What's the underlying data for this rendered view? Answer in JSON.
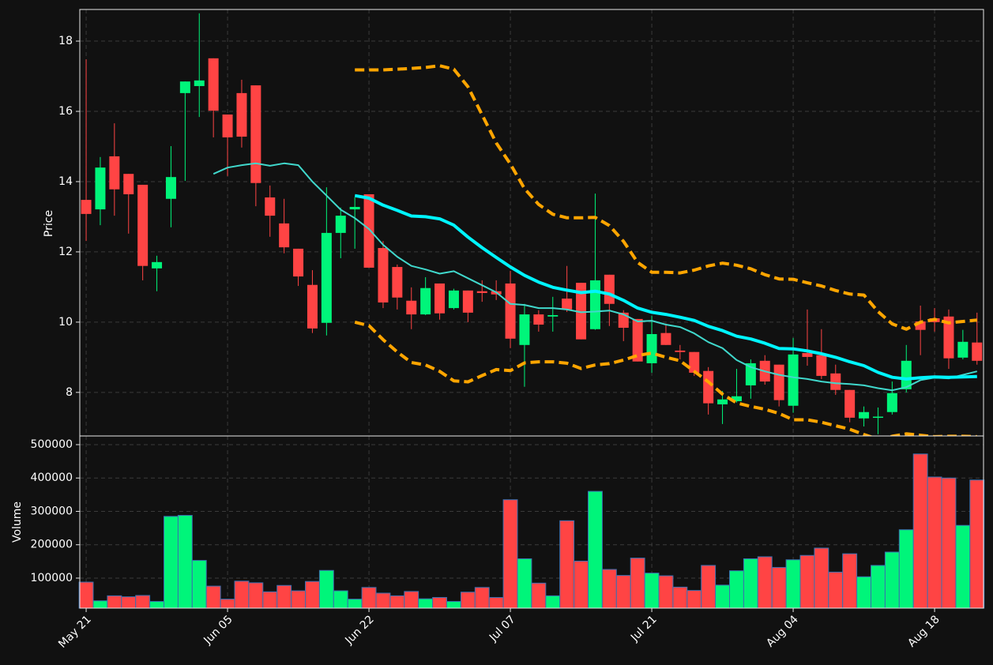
{
  "chart_data": [
    {
      "type": "candlestick",
      "ylabel": "Price",
      "categories": [
        "May 21",
        null,
        null,
        null,
        null,
        null,
        null,
        null,
        null,
        null,
        "Jun 05",
        null,
        null,
        null,
        null,
        null,
        null,
        null,
        null,
        null,
        "Jun 22",
        null,
        null,
        null,
        null,
        null,
        null,
        null,
        null,
        null,
        "Jul 07",
        null,
        null,
        null,
        null,
        null,
        null,
        null,
        null,
        null,
        "Jul 21",
        null,
        null,
        null,
        null,
        null,
        null,
        null,
        null,
        null,
        "Aug 04",
        null,
        null,
        null,
        null,
        null,
        null,
        null,
        null,
        null,
        "Aug 18",
        null,
        null,
        null
      ],
      "open": [
        13.48,
        13.21,
        14.72,
        14.22,
        13.91,
        11.53,
        13.51,
        16.52,
        16.72,
        17.51,
        15.91,
        16.52,
        16.74,
        13.55,
        12.81,
        12.09,
        11.06,
        9.98,
        12.54,
        13.21,
        13.64,
        12.11,
        11.57,
        10.61,
        10.22,
        11.1,
        10.4,
        10.9,
        10.88,
        10.88,
        11.1,
        9.35,
        10.22,
        10.16,
        10.67,
        11.12,
        9.8,
        11.35,
        10.27,
        10.09,
        8.83,
        9.69,
        9.19,
        9.15,
        8.61,
        7.66,
        7.75,
        8.2,
        8.9,
        8.79,
        7.62,
        9.12,
        9.06,
        8.54,
        8.07,
        7.26,
        7.29,
        7.44,
        8.09,
        10.02,
        10.11,
        10.16,
        8.99,
        9.42
      ],
      "high": [
        17.48,
        14.7,
        15.66,
        14.22,
        13.91,
        11.89,
        15.01,
        16.85,
        18.79,
        17.51,
        15.91,
        16.9,
        16.74,
        13.89,
        13.51,
        12.09,
        11.48,
        13.84,
        13.26,
        13.55,
        13.64,
        12.31,
        11.64,
        10.99,
        11.28,
        11.1,
        10.95,
        10.9,
        11.19,
        11.19,
        11.46,
        10.52,
        10.34,
        10.72,
        11.6,
        11.12,
        13.66,
        11.35,
        10.34,
        10.09,
        10.18,
        9.96,
        9.35,
        9.15,
        8.72,
        8.04,
        8.67,
        8.94,
        9.06,
        8.79,
        9.55,
        10.36,
        9.8,
        8.79,
        8.07,
        7.6,
        7.57,
        8.31,
        9.35,
        10.47,
        10.4,
        10.36,
        9.78,
        10.27
      ],
      "low": [
        12.31,
        12.76,
        13.03,
        12.52,
        11.19,
        10.88,
        12.7,
        14.02,
        15.84,
        15.26,
        14.16,
        14.97,
        13.3,
        12.43,
        11.96,
        11.03,
        9.69,
        9.62,
        11.82,
        12.09,
        11.55,
        10.4,
        10.36,
        9.8,
        10.2,
        10.07,
        10.36,
        10.0,
        10.58,
        10.63,
        9.26,
        8.16,
        9.73,
        9.73,
        10.29,
        9.51,
        9.78,
        9.89,
        9.46,
        8.88,
        8.56,
        9.35,
        8.94,
        8.47,
        7.37,
        7.1,
        7.71,
        7.82,
        8.22,
        7.6,
        7.42,
        8.76,
        8.38,
        7.93,
        7.15,
        7.03,
        6.81,
        7.37,
        8.0,
        9.06,
        9.73,
        8.67,
        8.94,
        8.79
      ],
      "close": [
        13.08,
        14.4,
        13.78,
        13.64,
        11.6,
        11.71,
        14.13,
        16.85,
        16.88,
        16.02,
        15.26,
        15.28,
        13.96,
        13.03,
        12.13,
        11.3,
        9.82,
        12.54,
        13.03,
        13.28,
        11.55,
        10.56,
        10.7,
        10.22,
        10.97,
        10.25,
        10.9,
        10.27,
        10.83,
        10.79,
        9.53,
        10.22,
        9.93,
        10.2,
        10.36,
        9.51,
        11.19,
        10.52,
        9.84,
        8.88,
        9.66,
        9.35,
        9.15,
        8.56,
        7.69,
        7.8,
        7.89,
        8.83,
        8.31,
        7.78,
        9.08,
        9.01,
        8.47,
        8.07,
        7.28,
        7.44,
        7.31,
        7.98,
        8.9,
        9.78,
        10.0,
        8.97,
        9.44,
        8.9
      ],
      "up_color": "#00f57a",
      "down_color": "#ff4444",
      "series": [
        {
          "color": "#40d8cc",
          "linewidth": 2,
          "linestyle": "solid",
          "values": [
            null,
            null,
            null,
            null,
            null,
            null,
            null,
            null,
            null,
            14.22,
            14.4,
            14.47,
            14.52,
            14.45,
            14.52,
            14.47,
            14.0,
            13.6,
            13.2,
            12.96,
            12.65,
            12.2,
            11.86,
            11.6,
            11.5,
            11.38,
            11.45,
            11.25,
            11.05,
            10.85,
            10.52,
            10.49,
            10.4,
            10.4,
            10.36,
            10.28,
            10.3,
            10.33,
            10.22,
            10.02,
            10.04,
            9.93,
            9.86,
            9.68,
            9.43,
            9.26,
            8.92,
            8.72,
            8.6,
            8.5,
            8.43,
            8.38,
            8.31,
            8.26,
            8.24,
            8.2,
            8.12,
            8.06,
            8.15,
            8.35,
            8.42,
            8.4,
            8.5,
            8.6
          ]
        },
        {
          "color": "#00f5ff",
          "linewidth": 4,
          "linestyle": "solid",
          "values": [
            null,
            null,
            null,
            null,
            null,
            null,
            null,
            null,
            null,
            null,
            null,
            null,
            null,
            null,
            null,
            null,
            null,
            null,
            null,
            13.6,
            13.53,
            13.33,
            13.18,
            13.02,
            13.0,
            12.94,
            12.76,
            12.42,
            12.12,
            11.84,
            11.57,
            11.33,
            11.14,
            10.99,
            10.91,
            10.84,
            10.88,
            10.8,
            10.62,
            10.4,
            10.28,
            10.22,
            10.14,
            10.05,
            9.88,
            9.76,
            9.6,
            9.52,
            9.4,
            9.25,
            9.24,
            9.18,
            9.1,
            9.0,
            8.87,
            8.76,
            8.57,
            8.43,
            8.38,
            8.42,
            8.44,
            8.43,
            8.44,
            8.45
          ]
        },
        {
          "color": "#ffa500",
          "linewidth": 4,
          "linestyle": "dashed",
          "values": [
            null,
            null,
            null,
            null,
            null,
            null,
            null,
            null,
            null,
            null,
            null,
            null,
            null,
            null,
            null,
            null,
            null,
            null,
            null,
            17.18,
            17.18,
            17.18,
            17.2,
            17.22,
            17.25,
            17.3,
            17.2,
            16.7,
            15.9,
            15.1,
            14.5,
            13.8,
            13.35,
            13.07,
            12.97,
            12.97,
            12.98,
            12.75,
            12.3,
            11.7,
            11.42,
            11.42,
            11.4,
            11.48,
            11.6,
            11.68,
            11.62,
            11.52,
            11.35,
            11.23,
            11.22,
            11.12,
            11.03,
            10.9,
            10.8,
            10.77,
            10.3,
            9.95,
            9.8,
            10.0,
            10.08,
            9.98,
            10.02,
            10.06
          ]
        },
        {
          "color": "#ffa500",
          "linewidth": 4,
          "linestyle": "dashed",
          "values": [
            null,
            null,
            null,
            null,
            null,
            null,
            null,
            null,
            null,
            null,
            null,
            null,
            null,
            null,
            null,
            null,
            null,
            null,
            null,
            10.0,
            9.9,
            9.5,
            9.15,
            8.85,
            8.78,
            8.6,
            8.33,
            8.3,
            8.48,
            8.65,
            8.62,
            8.84,
            8.87,
            8.87,
            8.83,
            8.68,
            8.78,
            8.82,
            8.92,
            9.05,
            9.12,
            9.0,
            8.9,
            8.6,
            8.3,
            7.95,
            7.7,
            7.6,
            7.52,
            7.4,
            7.22,
            7.22,
            7.15,
            7.05,
            6.95,
            6.8,
            6.67,
            6.75,
            6.82,
            6.78,
            6.74,
            6.75,
            6.75,
            6.74
          ]
        }
      ],
      "ylim": [
        6.76,
        18.9
      ],
      "yticks": [
        8,
        10,
        12,
        14,
        16,
        18
      ],
      "grid": true
    },
    {
      "type": "bar",
      "ylabel": "Volume",
      "edge_color": "#3a6fb0",
      "values": [
        88000,
        32000,
        47000,
        44000,
        48000,
        30000,
        285000,
        288000,
        153000,
        76000,
        37000,
        91000,
        86000,
        59000,
        78000,
        62000,
        90000,
        123000,
        62000,
        37000,
        72000,
        55000,
        47000,
        60000,
        38000,
        42000,
        30000,
        58000,
        72000,
        42000,
        335000,
        158000,
        85000,
        47000,
        272000,
        151000,
        360000,
        126000,
        108000,
        160000,
        115000,
        107000,
        73000,
        63000,
        138000,
        79000,
        122000,
        158000,
        164000,
        132000,
        155000,
        168000,
        190000,
        118000,
        173000,
        104000,
        138000,
        178000,
        245000,
        472000,
        403000,
        400000,
        258000,
        394000
      ],
      "ylim": [
        10000,
        526000
      ],
      "yticks": [
        100000,
        200000,
        300000,
        400000,
        500000
      ],
      "grid": true
    }
  ]
}
